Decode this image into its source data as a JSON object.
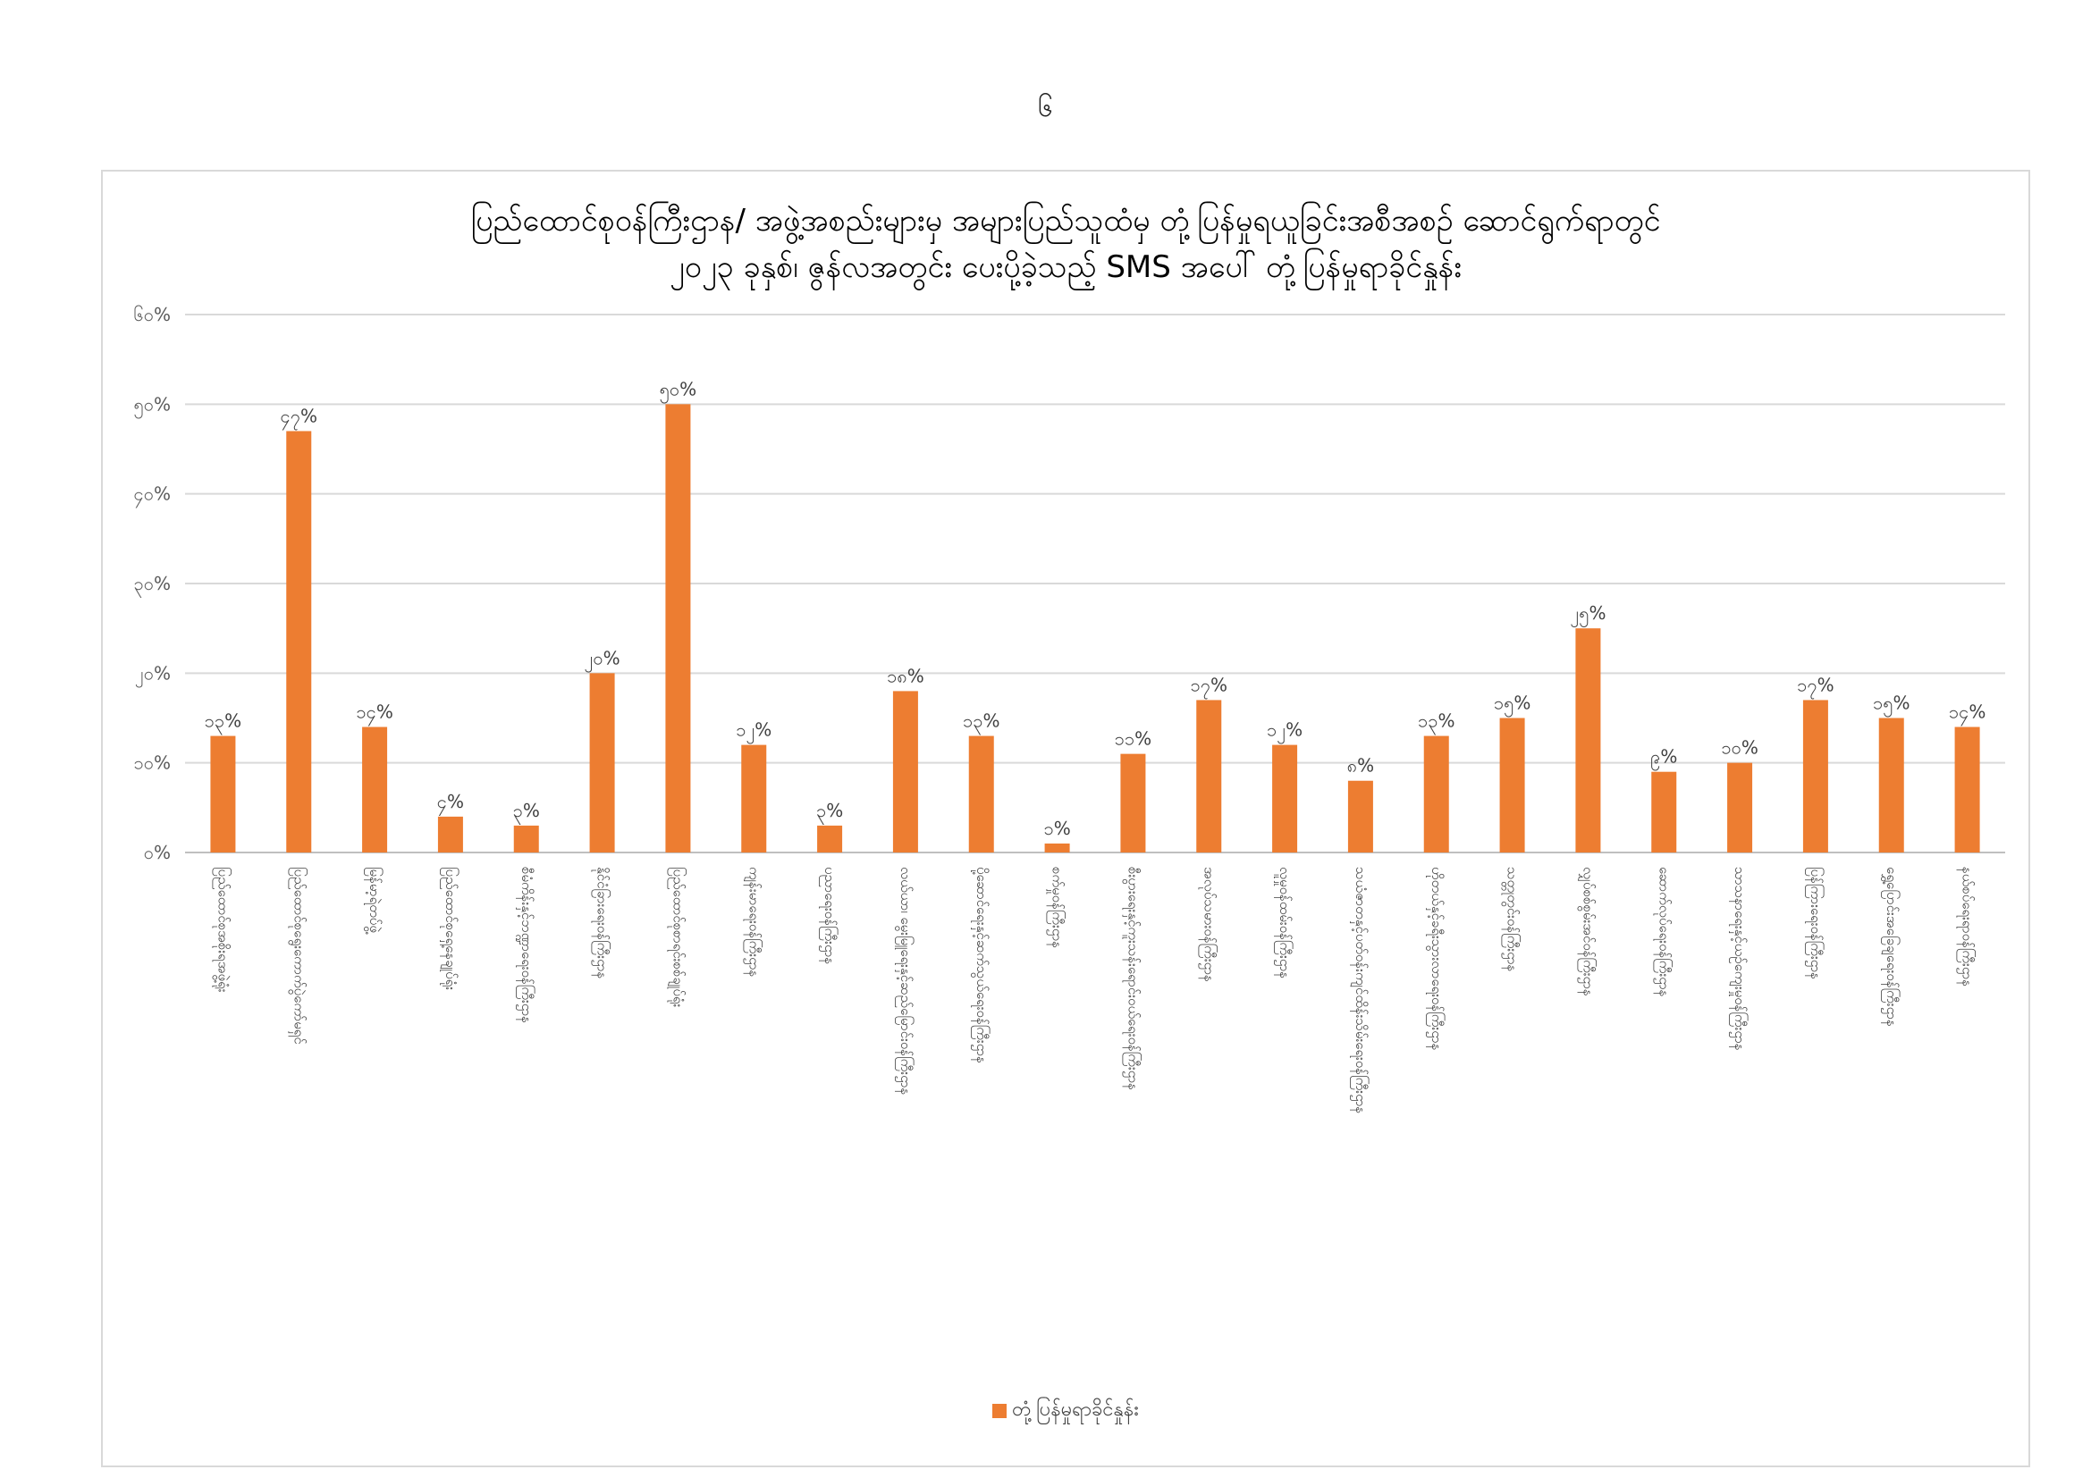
{
  "page_number": "၆",
  "chart_data": {
    "type": "bar",
    "title": "ပြည်ထောင်စုဝန်ကြီးဌာန/ အဖွဲ့အစည်းများမှ အများပြည်သူထံမှ တုံ့ပြန်မှုရယူခြင်းအစီအစဉ် ဆောင်ရွက်ရာတွင်",
    "subtitle": "၂၀၂၃ ခုနှစ်၊ ဇွန်လအတွင်း ပေးပို့ခဲ့သည့် SMS အပေါ် တုံ့ပြန်မှုရာခိုင်နှုန်း",
    "xlabel": "",
    "ylabel": "",
    "ylim": [
      0,
      60
    ],
    "y_ticks": [
      "၀%",
      "၁၀%",
      "၂၀%",
      "၃၀%",
      "၄၀%",
      "၅၀%",
      "၆၀%"
    ],
    "grid": true,
    "legend_position": "bottom",
    "color": "#ed7d31",
    "categories": [
      "ပြည်ထောင်စုအစိုးရအဖွဲ့ရုံး",
      "ပြည်ထောင်စုရွေးကောက်ပွဲကော်မရှင်",
      "မြန်မာ့ရဲတပ်ဖွဲ့",
      "ပြည်ထောင်စုရှေ့နေချုပ်ရုံး",
      "စီမံကိန်းနှင့်ဘဏ္ဍာရေးဝန်ကြီးဌာန",
      "နိုင်ငံခြားရေးဝန်ကြီးဌာန",
      "ပြည်ထောင်စုစာရင်းစစ်ချုပ်ရုံး",
      "ကျန်းမာရေးဝန်ကြီးဌာန",
      "ပညာရေးဝန်ကြီးဌာန",
      "လယ်ယာ၊ မွေးမြူရေးနှင့်ဆည်မြောင်းဝန်ကြီးဌာန",
      "ပို့ဆောင်ရေးနှင့်ဆက်သွယ်ရေးဝန်ကြီးဌာန",
      "စက်မှုဝန်ကြီးဌာန",
      "စီးပွားရေးနှင့်ကူးသန်းရောင်းဝယ်ရေးဝန်ကြီးဌာန",
      "အလုပ်သမားဝန်ကြီးဌာန",
      "လူမှုဝန်ထမ်းဝန်ကြီးဌာန",
      "သယံဇာတနှင့်ပတ်ဝန်းကျင်ထိန်းသိမ်းရေးဝန်ကြီးဌာန",
      "ဟိုတယ်နှင့်ခရီးသွားလာရေးဝန်ကြီးဌာန",
      "သတ္တုတွင်းဝန်ကြီးဌာန",
      "လျှပ်စစ်စွမ်းအင်ဝန်ကြီးဌာန",
      "ဆောက်လုပ်ရေးဝန်ကြီးဌာန",
      "သာသနာရေးနှင့်ယဉ်ကျေးမှုဝန်ကြီးဌာန",
      "ပြန်ကြားရေးဝန်ကြီးဌာန",
      "ရွှေ့ပြောင်းအခြေချရေးဝန်ကြီးဌာန",
      "နယ်စပ်ရေးရာဝန်ကြီးဌာန"
    ],
    "values": [
      13,
      47,
      14,
      4,
      3,
      20,
      50,
      12,
      3,
      18,
      13,
      1,
      11,
      17,
      12,
      8,
      13,
      15,
      25,
      9,
      10,
      17,
      15,
      14
    ],
    "data_labels": [
      "၁၃%",
      "၄၇%",
      "၁၄%",
      "၄%",
      "၃%",
      "၂၀%",
      "၅၀%",
      "၁၂%",
      "၃%",
      "၁၈%",
      "၁၃%",
      "၁%",
      "၁၁%",
      "၁၇%",
      "၁၂%",
      "၈%",
      "၁၃%",
      "၁၅%",
      "၂၅%",
      "၉%",
      "၁၀%",
      "၁၇%",
      "၁၅%",
      "၁၄%"
    ],
    "series": [
      {
        "name": "တုံ့ပြန်မှုရာခိုင်နှုန်း"
      }
    ]
  }
}
